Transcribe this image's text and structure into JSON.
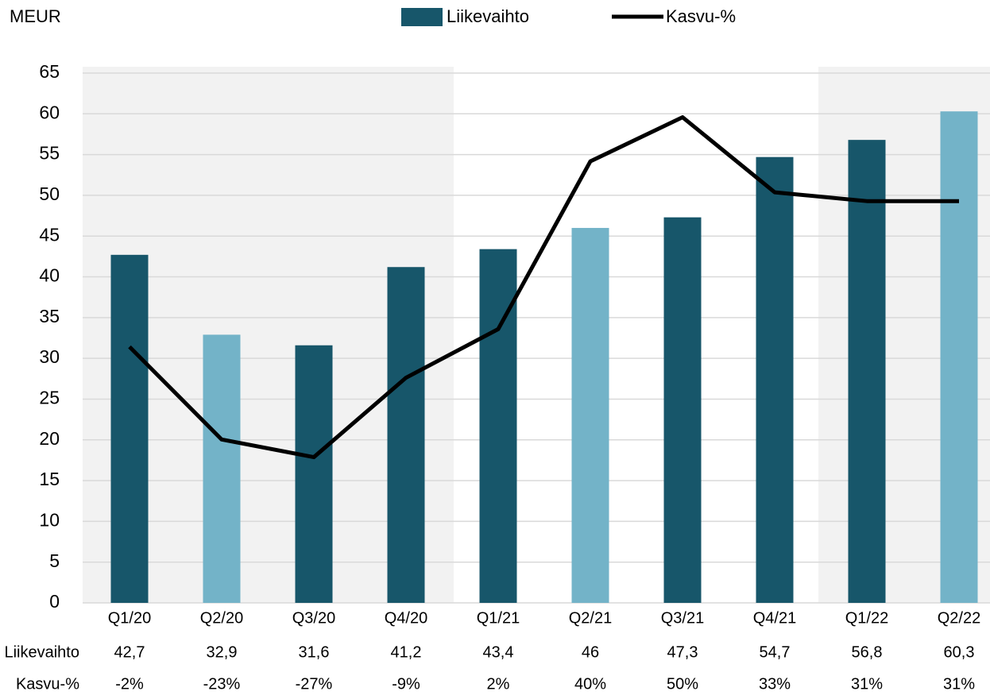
{
  "chart_data": {
    "type": "bar",
    "y_axis_label": "MEUR",
    "categories": [
      "Q1/20",
      "Q2/20",
      "Q3/20",
      "Q4/20",
      "Q1/21",
      "Q2/21",
      "Q3/21",
      "Q4/21",
      "Q1/22",
      "Q2/22"
    ],
    "series": [
      {
        "name": "Liikevaihto",
        "type": "bar",
        "color": "#17566a",
        "colors": [
          "#17566a",
          "#73b3c8",
          "#17566a",
          "#17566a",
          "#17566a",
          "#73b3c8",
          "#17566a",
          "#17566a",
          "#17566a",
          "#73b3c8"
        ],
        "values": [
          42.7,
          32.9,
          31.6,
          41.2,
          43.4,
          46,
          47.3,
          54.7,
          56.8,
          60.3
        ],
        "value_labels": [
          "42,7",
          "32,9",
          "31,6",
          "41,2",
          "43,4",
          "46",
          "47,3",
          "54,7",
          "56,8",
          "60,3"
        ]
      },
      {
        "name": "Kasvu-%",
        "type": "line",
        "axis": "y2",
        "color": "#000000",
        "values": [
          -2,
          -23,
          -27,
          -9,
          2,
          40,
          50,
          33,
          31,
          31
        ],
        "value_labels": [
          "-2%",
          "-23%",
          "-27%",
          "-9%",
          "2%",
          "40%",
          "50%",
          "33%",
          "31%",
          "31%"
        ]
      }
    ],
    "ylim": [
      0,
      65
    ],
    "yticks": [
      0,
      5,
      10,
      15,
      20,
      25,
      30,
      35,
      40,
      45,
      50,
      55,
      60,
      65
    ],
    "y2lim": [
      -60,
      60
    ],
    "grid": true
  }
}
